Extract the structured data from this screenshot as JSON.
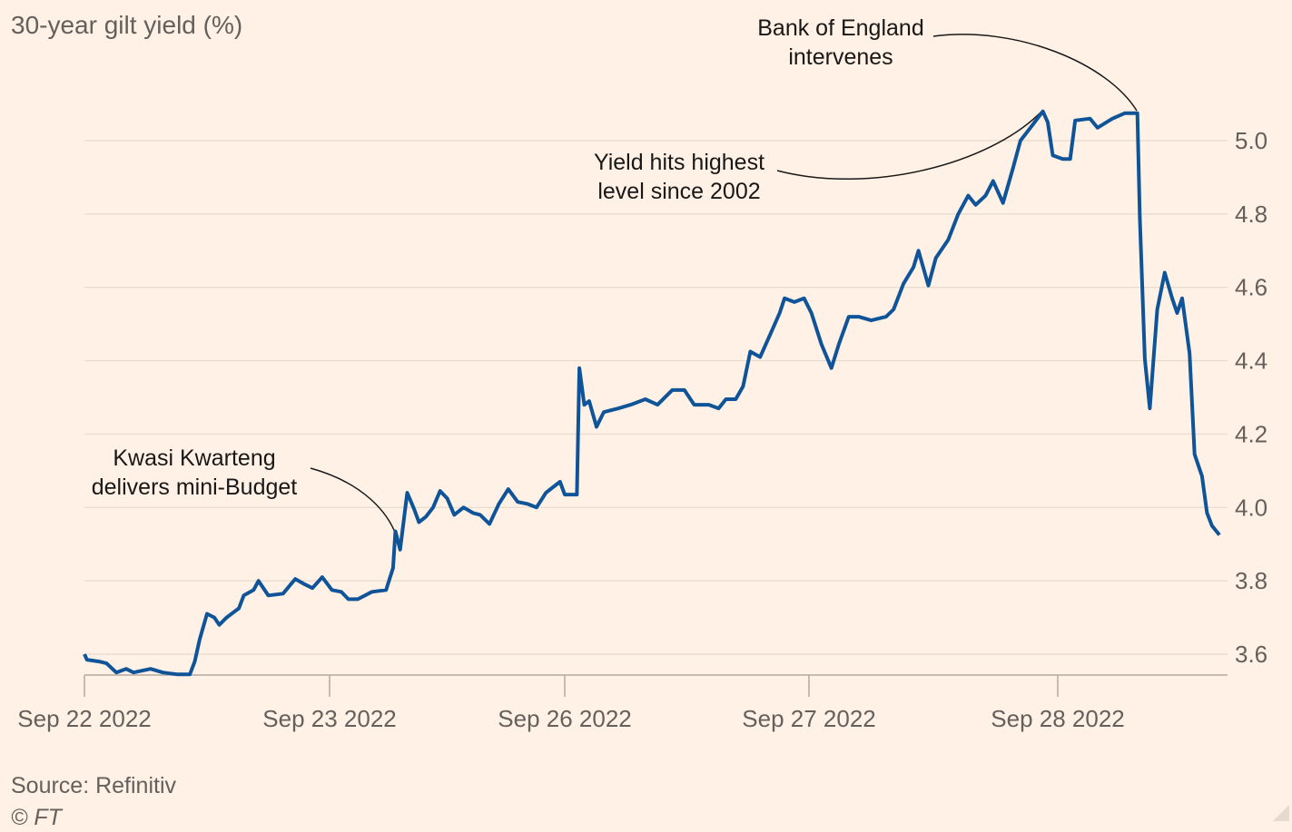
{
  "chart_data": {
    "type": "line",
    "title": "30-year gilt yield (%)",
    "xlabel": "",
    "ylabel": "",
    "ylim": [
      3.55,
      5.12
    ],
    "yticks": [
      3.6,
      3.8,
      4.0,
      4.2,
      4.4,
      4.6,
      4.8,
      5.0
    ],
    "ytick_labels": [
      "3.6",
      "3.8",
      "4.0",
      "4.2",
      "4.4",
      "4.6",
      "4.8",
      "5.0"
    ],
    "x_unit": "trading-day index (0 = Sep 22 2022)",
    "xticks": [
      0,
      1,
      2,
      3,
      4
    ],
    "xtick_labels": [
      "Sep 22 2022",
      "Sep 23 2022",
      "Sep 26 2022",
      "Sep 27 2022",
      "Sep 28 2022"
    ],
    "grid": true,
    "color": "#0f5499",
    "series": [
      {
        "name": "30-year gilt yield",
        "x": [
          0,
          0.01,
          0.06,
          0.09,
          0.13,
          0.17,
          0.2,
          0.27,
          0.32,
          0.38,
          0.43,
          0.45,
          0.47,
          0.5,
          0.53,
          0.55,
          0.58,
          0.63,
          0.65,
          0.69,
          0.71,
          0.75,
          0.81,
          0.86,
          0.9,
          0.93,
          0.97,
          1.01,
          1.05,
          1.08,
          1.12,
          1.18,
          1.24,
          1.27,
          1.28,
          1.3,
          1.33,
          1.36,
          1.38,
          1.41,
          1.44,
          1.47,
          1.5,
          1.53,
          1.57,
          1.61,
          1.64,
          1.68,
          1.72,
          1.76,
          1.8,
          1.84,
          1.88,
          1.92,
          1.96,
          1.98,
          2.0,
          2.05,
          2.06,
          2.08,
          2.1,
          2.13,
          2.16,
          2.22,
          2.27,
          2.33,
          2.38,
          2.44,
          2.49,
          2.53,
          2.59,
          2.63,
          2.66,
          2.7,
          2.73,
          2.76,
          2.8,
          2.84,
          2.88,
          2.9,
          2.94,
          2.98,
          3.01,
          3.05,
          3.09,
          3.12,
          3.16,
          3.2,
          3.25,
          3.31,
          3.34,
          3.38,
          3.42,
          3.44,
          3.48,
          3.51,
          3.56,
          3.6,
          3.64,
          3.67,
          3.71,
          3.74,
          3.78,
          3.82,
          3.85,
          3.89,
          3.94,
          3.96,
          3.98,
          4.02,
          4.05,
          4.07,
          4.13,
          4.16,
          4.22,
          4.27,
          4.32,
          4.33,
          4.35,
          4.37,
          4.4,
          4.43,
          4.46,
          4.48,
          4.5,
          4.53,
          4.55,
          4.58,
          4.6,
          4.62,
          4.65
        ],
        "values": [
          3.6,
          3.585,
          3.58,
          3.575,
          3.55,
          3.56,
          3.55,
          3.56,
          3.55,
          3.545,
          3.545,
          3.58,
          3.64,
          3.71,
          3.7,
          3.68,
          3.7,
          3.725,
          3.76,
          3.775,
          3.8,
          3.76,
          3.765,
          3.805,
          3.79,
          3.78,
          3.81,
          3.775,
          3.77,
          3.75,
          3.75,
          3.77,
          3.775,
          3.835,
          3.935,
          3.885,
          4.04,
          3.995,
          3.96,
          3.975,
          4.0,
          4.045,
          4.025,
          3.98,
          4.0,
          3.985,
          3.98,
          3.955,
          4.01,
          4.05,
          4.015,
          4.01,
          4.0,
          4.04,
          4.06,
          4.07,
          4.035,
          4.035,
          4.38,
          4.28,
          4.29,
          4.22,
          4.26,
          4.27,
          4.28,
          4.295,
          4.28,
          4.32,
          4.32,
          4.28,
          4.28,
          4.27,
          4.295,
          4.295,
          4.33,
          4.425,
          4.41,
          4.47,
          4.53,
          4.57,
          4.56,
          4.57,
          4.53,
          4.445,
          4.38,
          4.445,
          4.52,
          4.52,
          4.51,
          4.52,
          4.54,
          4.61,
          4.655,
          4.7,
          4.605,
          4.68,
          4.73,
          4.8,
          4.85,
          4.825,
          4.85,
          4.89,
          4.83,
          4.925,
          5.0,
          5.035,
          5.08,
          5.05,
          4.96,
          4.95,
          4.95,
          5.055,
          5.06,
          5.035,
          5.06,
          5.075,
          5.075,
          4.79,
          4.405,
          4.27,
          4.54,
          4.64,
          4.57,
          4.53,
          4.57,
          4.42,
          4.145,
          4.085,
          3.985,
          3.95,
          3.925
        ]
      }
    ],
    "annotations": [
      {
        "lines": [
          "Kwasi Kwarteng",
          "delivers mini-Budget"
        ],
        "x": 1.28,
        "y": 3.9
      },
      {
        "lines": [
          "Yield hits highest",
          "level since 2002"
        ],
        "x": 3.94,
        "y": 5.08
      },
      {
        "lines": [
          "Bank of England",
          "intervenes"
        ],
        "x": 4.32,
        "y": 5.075
      }
    ],
    "source": "Source: Refinitiv",
    "copyright": "© FT"
  }
}
